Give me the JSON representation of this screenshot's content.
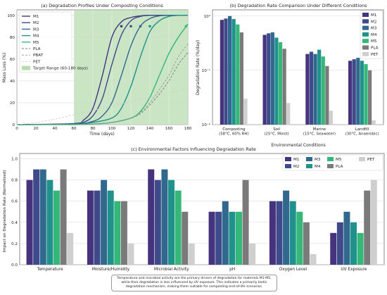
{
  "palette": {
    "M1": "#46337e",
    "M2": "#3e4a89",
    "M3": "#31688e",
    "M4": "#21918c",
    "M5": "#35b779",
    "PLA": "#7a7a7a",
    "PBAT": "#9a9a9a",
    "PET": "#cfcfcf",
    "target": "#b7dcb0"
  },
  "chart_data": [
    {
      "type": "line",
      "title": "(a) Degradation Profiles Under Composting Conditions",
      "xlabel": "Time (days)",
      "ylabel": "Mass Loss (%)",
      "xlim": [
        0,
        180
      ],
      "ylim": [
        0,
        105
      ],
      "xticks": [
        0,
        20,
        40,
        60,
        80,
        100,
        120,
        140,
        160,
        180
      ],
      "yticks": [
        0,
        20,
        40,
        60,
        80,
        100
      ],
      "grid": true,
      "legend": "upper-left",
      "target_range": {
        "label": "Target Range (60-180 days)",
        "from": 60,
        "to": 180
      },
      "series": [
        {
          "name": "M1",
          "x": [
            0,
            60,
            70,
            80,
            90,
            100,
            110,
            120,
            130,
            140,
            160,
            180
          ],
          "y": [
            0,
            1,
            4,
            15,
            45,
            80,
            94,
            98,
            99.5,
            100,
            100,
            100
          ],
          "marker": {
            "x": 110,
            "y": 90
          }
        },
        {
          "name": "M2",
          "x": [
            0,
            60,
            70,
            80,
            90,
            100,
            110,
            120,
            130,
            140,
            160,
            180
          ],
          "y": [
            0,
            0.5,
            2,
            8,
            24,
            55,
            82,
            95,
            99,
            100,
            100,
            100
          ],
          "marker": {
            "x": 120,
            "y": 90
          }
        },
        {
          "name": "M3",
          "x": [
            0,
            60,
            80,
            90,
            100,
            110,
            120,
            130,
            140,
            150,
            160,
            180
          ],
          "y": [
            0,
            0.5,
            3,
            8,
            20,
            45,
            72,
            90,
            97,
            99.5,
            100,
            100
          ],
          "marker": {
            "x": 130,
            "y": 90
          }
        },
        {
          "name": "M4",
          "x": [
            0,
            60,
            80,
            100,
            110,
            120,
            130,
            140,
            150,
            160,
            170,
            180
          ],
          "y": [
            0,
            0.5,
            2,
            6,
            15,
            35,
            62,
            85,
            95,
            99,
            100,
            100
          ],
          "marker": {
            "x": 140,
            "y": 90
          }
        },
        {
          "name": "M5",
          "x": [
            0,
            60,
            80,
            100,
            120,
            130,
            140,
            150,
            160,
            170,
            180
          ],
          "y": [
            0,
            0,
            0.5,
            2,
            6,
            12,
            25,
            45,
            65,
            80,
            92
          ],
          "marker": {
            "x": 178,
            "y": 90
          }
        },
        {
          "name": "PLA",
          "style": "dashed",
          "x": [
            0,
            60,
            80,
            100,
            120,
            130,
            140,
            150,
            160,
            170,
            180
          ],
          "y": [
            0,
            0,
            0.5,
            2,
            6,
            10,
            18,
            28,
            40,
            55,
            66
          ]
        },
        {
          "name": "PBAT",
          "style": "dashed",
          "x": [
            0,
            60,
            80,
            100,
            120,
            130,
            140,
            150,
            160,
            170,
            180
          ],
          "y": [
            0,
            0,
            0.5,
            2,
            6,
            11,
            20,
            32,
            45,
            62,
            74
          ]
        },
        {
          "name": "PET",
          "style": "dashed",
          "x": [
            0,
            20,
            40,
            60,
            80,
            100,
            120,
            140,
            160,
            180
          ],
          "y": [
            0,
            2,
            5,
            9,
            13,
            17,
            21,
            25,
            29,
            33
          ]
        }
      ]
    },
    {
      "type": "bar",
      "title": "(b) Degradation Rate Comparison Under Different Conditions",
      "xlabel": "Environmental Conditions",
      "ylabel": "Degradation Rate (%/day)",
      "yscale": "log",
      "ylim": [
        0.01,
        1.3
      ],
      "yticks": [
        "10⁻²",
        "10⁻¹",
        "10⁰"
      ],
      "legend": "upper-right",
      "categories": [
        [
          "Composting",
          "(58°C, 60% RH)"
        ],
        [
          "Soil",
          "(25°C, Moist)"
        ],
        [
          "Marine",
          "(15°C, Seawater)"
        ],
        [
          "Landfill",
          "(30°C, Anaerobic)"
        ]
      ],
      "series": [
        {
          "name": "M1",
          "values": [
            0.85,
            0.45,
            0.2,
            0.15
          ]
        },
        {
          "name": "M2",
          "values": [
            0.9,
            0.48,
            0.22,
            0.16
          ]
        },
        {
          "name": "M3",
          "values": [
            1.0,
            0.5,
            0.2,
            0.17
          ]
        },
        {
          "name": "M4",
          "values": [
            0.88,
            0.4,
            0.24,
            0.15
          ]
        },
        {
          "name": "M5",
          "values": [
            0.7,
            0.33,
            0.18,
            0.13
          ]
        },
        {
          "name": "PLA",
          "values": [
            0.5,
            0.25,
            0.12,
            0.1
          ]
        },
        {
          "name": "PET",
          "values": [
            0.03,
            0.025,
            0.018,
            0.012
          ]
        }
      ]
    },
    {
      "type": "bar",
      "title": "(c) Environmental Factors Influencing Degradation Rate",
      "xlabel": "",
      "ylabel": "Impact on Degradation Rate (Normalized)",
      "ylim": [
        0,
        1.05
      ],
      "yticks": [
        0.0,
        0.2,
        0.4,
        0.6,
        0.8,
        1.0
      ],
      "legend": "upper-right",
      "categories": [
        "Temperature",
        "Moisture/Humidity",
        "Microbial Activity",
        "pH",
        "Oxygen Level",
        "UV Exposure"
      ],
      "series": [
        {
          "name": "M1",
          "values": [
            0.8,
            0.7,
            0.9,
            0.5,
            0.6,
            0.3
          ]
        },
        {
          "name": "M2",
          "values": [
            0.9,
            0.7,
            0.8,
            0.5,
            0.6,
            0.4
          ]
        },
        {
          "name": "M3",
          "values": [
            0.9,
            0.8,
            0.9,
            0.6,
            0.7,
            0.5
          ]
        },
        {
          "name": "M4",
          "values": [
            0.8,
            0.7,
            0.8,
            0.5,
            0.6,
            0.4
          ]
        },
        {
          "name": "M5",
          "values": [
            0.7,
            0.6,
            0.7,
            0.5,
            0.5,
            0.3
          ]
        },
        {
          "name": "PLA",
          "values": [
            0.9,
            0.6,
            0.5,
            0.8,
            0.4,
            0.7
          ]
        },
        {
          "name": "PET",
          "values": [
            0.3,
            0.2,
            0.2,
            0.2,
            0.1,
            0.8
          ]
        }
      ]
    }
  ],
  "annotation": "Temperature and microbial activity are the primary drivers of degradation for materials M1-M5, while their degradation is less influenced by UV exposure. This indicates a primarily biotic degradation mechanism, making them suitable for composting end-of-life scenarios."
}
